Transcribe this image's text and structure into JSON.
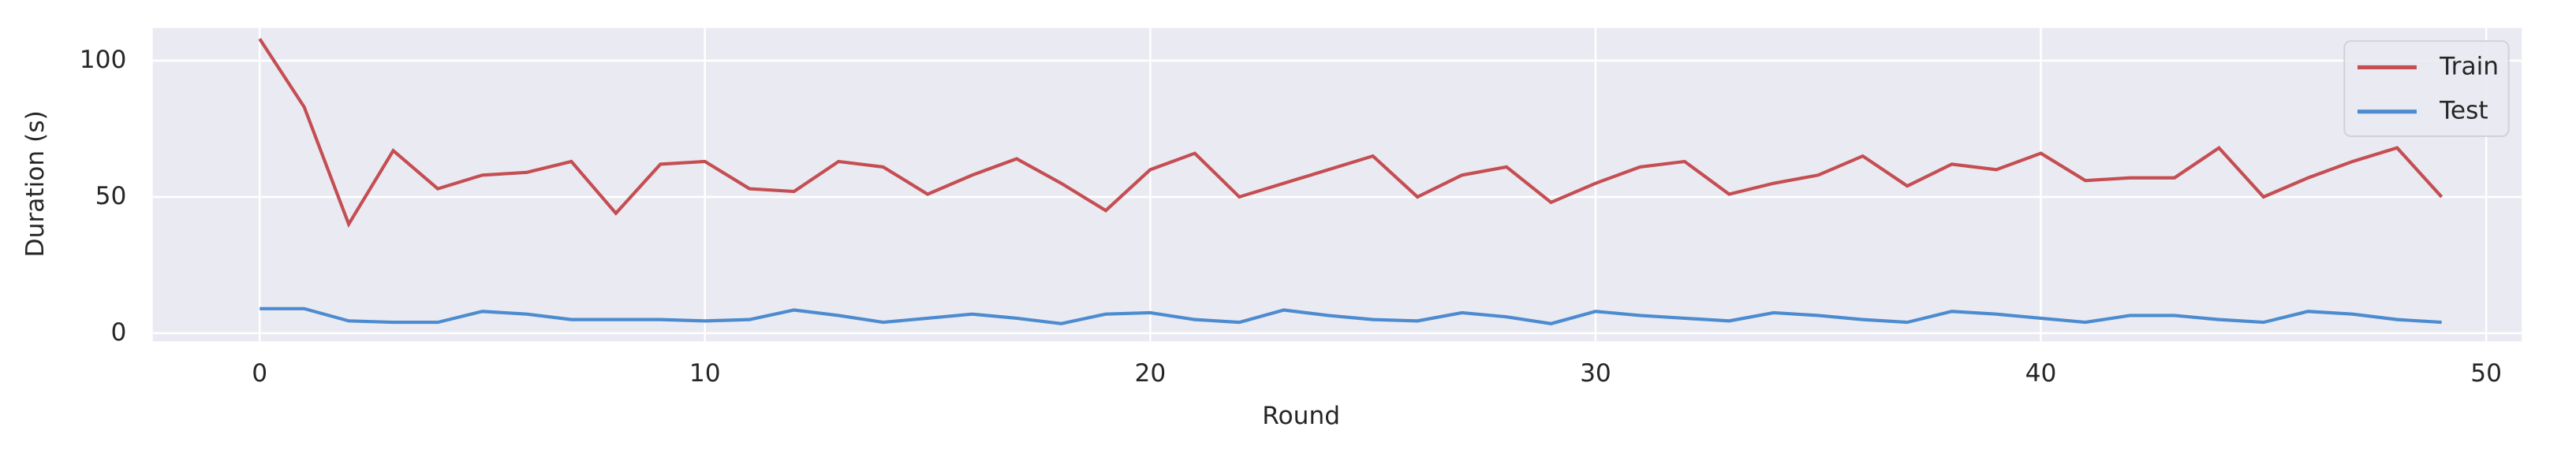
{
  "chart_data": {
    "type": "line",
    "xlabel": "Round",
    "ylabel": "Duration (s)",
    "x": [
      0,
      1,
      2,
      3,
      4,
      5,
      6,
      7,
      8,
      9,
      10,
      11,
      12,
      13,
      14,
      15,
      16,
      17,
      18,
      19,
      20,
      21,
      22,
      23,
      24,
      25,
      26,
      27,
      28,
      29,
      30,
      31,
      32,
      33,
      34,
      35,
      36,
      37,
      38,
      39,
      40,
      41,
      42,
      43,
      44,
      45,
      46,
      47,
      48,
      49
    ],
    "series": [
      {
        "name": "Train",
        "color": "#c44e52",
        "values": [
          108,
          83,
          40,
          67,
          53,
          58,
          59,
          63,
          44,
          62,
          63,
          53,
          52,
          63,
          61,
          51,
          58,
          64,
          55,
          45,
          60,
          66,
          50,
          55,
          60,
          65,
          50,
          58,
          61,
          48,
          55,
          61,
          63,
          51,
          55,
          58,
          65,
          54,
          62,
          60,
          66,
          56,
          57,
          57,
          68,
          50,
          57,
          63,
          68,
          50
        ]
      },
      {
        "name": "Test",
        "color": "#4c8bd0",
        "values": [
          9,
          9,
          4.5,
          4,
          4,
          8,
          7,
          5,
          5,
          5,
          4.5,
          5,
          8.5,
          6.5,
          4,
          5.5,
          7,
          5.5,
          3.5,
          7,
          7.5,
          5,
          4,
          8.5,
          6.5,
          5,
          4.5,
          7.5,
          6,
          3.5,
          8,
          6.5,
          5.5,
          4.5,
          7.5,
          6.5,
          5,
          4,
          8,
          7,
          5.5,
          4,
          6.5,
          6.5,
          5,
          4,
          8,
          7,
          5,
          4
        ]
      }
    ],
    "xlim": [
      -2.4,
      50.8
    ],
    "ylim": [
      -3,
      112
    ],
    "xticks": [
      0,
      10,
      20,
      30,
      40,
      50
    ],
    "yticks": [
      0,
      50,
      100
    ],
    "grid": true,
    "legend": "upper right",
    "background": "#eaeaf2"
  }
}
